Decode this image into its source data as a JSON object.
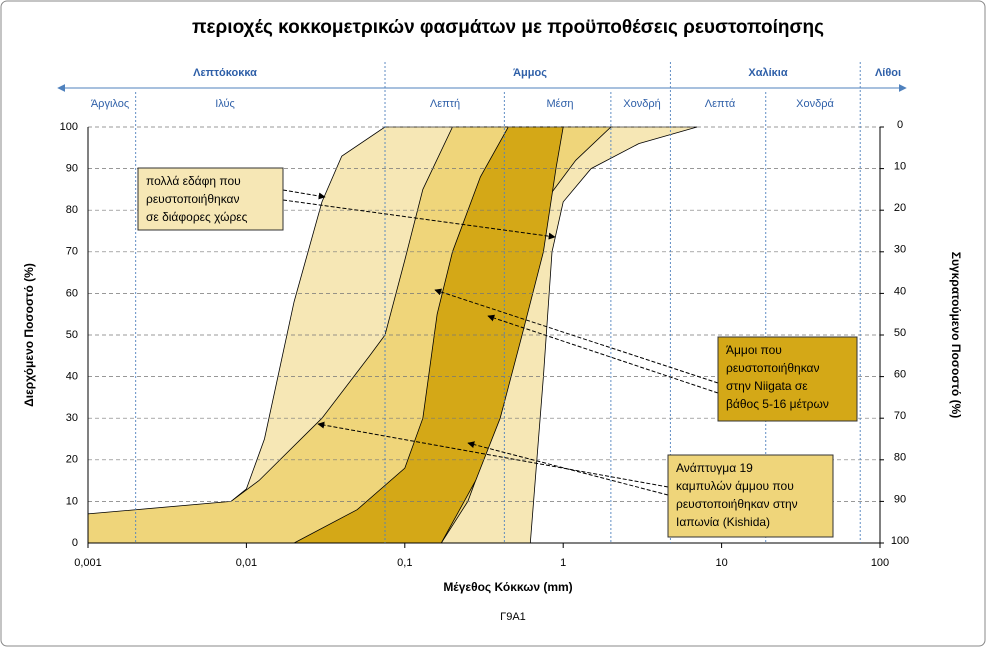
{
  "chart_data": {
    "type": "band",
    "title": "περιοχές κοκκομετρικών φασμάτων με προϋποθέσεις ρευστοποίησης",
    "xlabel": "Μέγεθος  Κόκκων (mm)",
    "ylabel": "Διερχόμενο Ποσοστό  (%)",
    "y2label": "Συγκρατούμενο Ποσοστό  (%)",
    "footer": "Γ9Α1",
    "log_x": true,
    "grid": true,
    "xlim": [
      0.001,
      100
    ],
    "xticks": [
      {
        "value": 0.001,
        "label": "0,001"
      },
      {
        "value": 0.01,
        "label": "0,01"
      },
      {
        "value": 0.1,
        "label": "0,1"
      },
      1,
      10,
      100
    ],
    "ylim": [
      0,
      100
    ],
    "yticks": [
      0,
      10,
      20,
      30,
      40,
      50,
      60,
      70,
      80,
      90,
      100
    ],
    "y2lim": [
      100,
      0
    ],
    "y2ticks": [
      0,
      10,
      20,
      30,
      40,
      50,
      60,
      70,
      80,
      90,
      100
    ],
    "main_zones": [
      "Λεπτόκοκκα",
      "Άμμος",
      "Χαλίκια",
      "Λίθοι"
    ],
    "sub_zones": [
      "Άργιλος",
      "Ιλύς",
      "Λεπτή",
      "Μέση",
      "Χονδρή",
      "Λεπτά",
      "Χονδρά"
    ],
    "main_boundaries": [
      0.075,
      4.75,
      75
    ],
    "sub_boundaries": [
      0.002,
      0.425,
      2,
      19
    ],
    "series": [
      {
        "color": "#f6e7b5",
        "x": [
          0.005,
          0.008,
          0.01,
          0.013,
          0.02,
          0.03,
          0.04,
          0.075,
          7,
          3,
          1.5,
          1,
          0.85,
          0.75,
          0.62
        ],
        "values": [
          0,
          10,
          13,
          25,
          58,
          82,
          93,
          100,
          100,
          96,
          90,
          82,
          70,
          40,
          0
        ]
      },
      {
        "color": "#efd57a",
        "x": [
          0.001,
          0.001,
          0.008,
          0.012,
          0.03,
          0.06,
          0.075,
          0.1,
          0.13,
          0.2,
          2,
          1.2,
          0.8,
          0.6,
          0.45,
          0.35,
          0.25,
          0.17
        ],
        "values": [
          0,
          7,
          10,
          15,
          30,
          45,
          50,
          68,
          85,
          100,
          100,
          92,
          83,
          70,
          45,
          25,
          10,
          0
        ]
      },
      {
        "color": "#d4a817",
        "x": [
          0.02,
          0.05,
          0.1,
          0.13,
          0.16,
          0.2,
          0.3,
          0.45,
          1,
          0.9,
          0.75,
          0.55,
          0.4,
          0.28,
          0.17
        ],
        "values": [
          0,
          8,
          18,
          30,
          55,
          70,
          88,
          100,
          100,
          90,
          70,
          50,
          30,
          15,
          0
        ]
      }
    ],
    "annotations": [
      {
        "lines": [
          "πολλά εδάφη που",
          "ρευστοποιήθηκαν",
          "σε διάφορες χώρες"
        ],
        "color": "#f6e7b5"
      },
      {
        "lines": [
          "Άμμοι που",
          "ρευστοποιήθηκαν",
          "στην Niigata σε",
          "βάθος 5-16 μέτρων"
        ],
        "color": "#d4a817"
      },
      {
        "lines": [
          "Ανάπτυγμα 19",
          "καμπυλών άμμου που",
          "ρευστοποιήθηκαν στην",
          "Ιαπωνία (Kishida)"
        ],
        "color": "#efd57a"
      }
    ]
  }
}
